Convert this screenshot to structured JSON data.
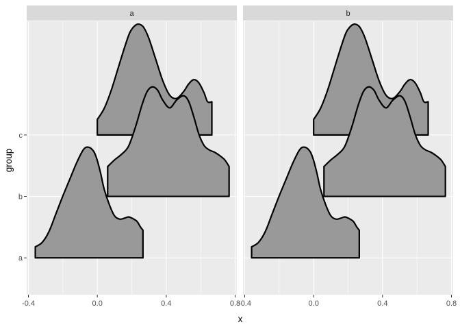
{
  "chart_data": {
    "type": "ridgeline",
    "facet_labels": [
      "a",
      "b"
    ],
    "xlabel": "x",
    "ylabel": "group",
    "xlim": [
      -0.41,
      0.81
    ],
    "x_ticks": [
      -0.4,
      0.0,
      0.4,
      0.8
    ],
    "x_tick_labels": [
      "-0.4",
      "0.0",
      "0.4",
      "0.8"
    ],
    "x_minor": [
      -0.2,
      0.2,
      0.6
    ],
    "y_categories": [
      "a",
      "b",
      "c"
    ],
    "ylim": [
      0.4,
      4.85
    ],
    "ridge_scale": 1.8,
    "grid": true,
    "legend": "none",
    "fill_color": "#999999",
    "line_color": "#000000",
    "panel_color": "#ebebeb",
    "series": [
      {
        "name": "a",
        "x": [
          -0.36,
          -0.32,
          -0.28,
          -0.24,
          -0.2,
          -0.16,
          -0.12,
          -0.08,
          -0.05,
          -0.02,
          0.0,
          0.02,
          0.04,
          0.07,
          0.1,
          0.13,
          0.16,
          0.18,
          0.2,
          0.23,
          0.25,
          0.265
        ],
        "density": [
          0.1,
          0.14,
          0.24,
          0.4,
          0.56,
          0.71,
          0.86,
          0.98,
          1.0,
          0.96,
          0.88,
          0.76,
          0.62,
          0.48,
          0.38,
          0.35,
          0.36,
          0.37,
          0.36,
          0.33,
          0.28,
          0.25
        ]
      },
      {
        "name": "b",
        "x": [
          0.06,
          0.1,
          0.14,
          0.18,
          0.22,
          0.26,
          0.29,
          0.32,
          0.35,
          0.38,
          0.42,
          0.46,
          0.5,
          0.53,
          0.56,
          0.59,
          0.62,
          0.65,
          0.68,
          0.71,
          0.74,
          0.765
        ],
        "density": [
          0.27,
          0.33,
          0.38,
          0.45,
          0.62,
          0.83,
          0.95,
          0.99,
          0.96,
          0.87,
          0.8,
          0.87,
          0.91,
          0.86,
          0.72,
          0.56,
          0.46,
          0.42,
          0.4,
          0.37,
          0.33,
          0.27
        ]
      },
      {
        "name": "c",
        "x": [
          0.0,
          0.04,
          0.08,
          0.12,
          0.16,
          0.19,
          0.22,
          0.245,
          0.27,
          0.3,
          0.34,
          0.38,
          0.42,
          0.46,
          0.5,
          0.53,
          0.56,
          0.59,
          0.62,
          0.64,
          0.665
        ],
        "density": [
          0.14,
          0.24,
          0.4,
          0.6,
          0.8,
          0.93,
          0.99,
          1.0,
          0.97,
          0.87,
          0.68,
          0.49,
          0.36,
          0.33,
          0.39,
          0.46,
          0.5,
          0.47,
          0.38,
          0.3,
          0.3
        ]
      }
    ]
  }
}
